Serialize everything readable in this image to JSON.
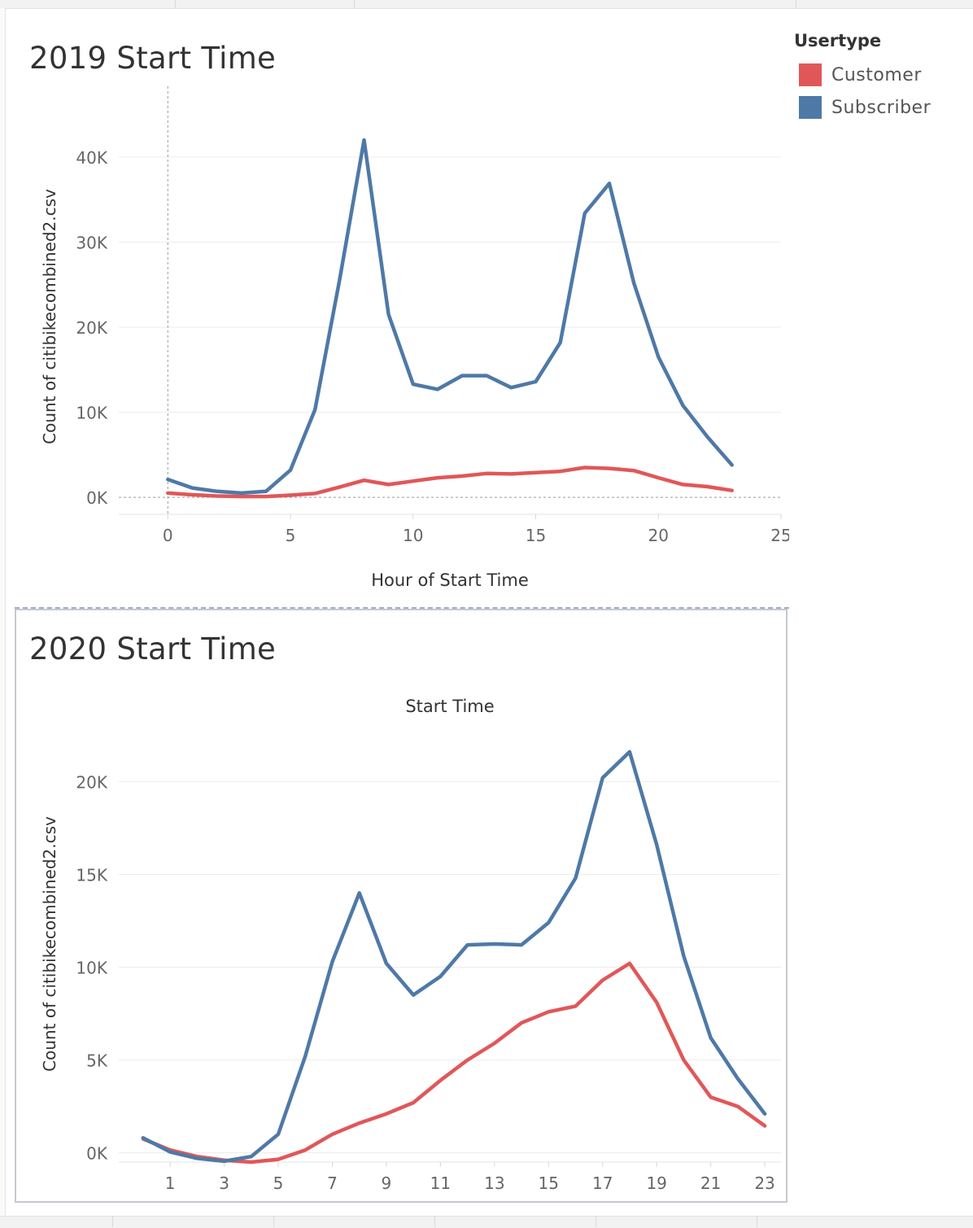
{
  "legend": {
    "title": "Usertype",
    "items": [
      {
        "label": "Customer",
        "color": "#e15759"
      },
      {
        "label": "Subscriber",
        "color": "#4e79a7"
      }
    ]
  },
  "chart_data": [
    {
      "type": "line",
      "title": "2019 Start Time",
      "xlabel": "Hour of Start Time",
      "ylabel": "Count of citibikecombined2.csv",
      "xlim": [
        -2,
        25
      ],
      "ylim": [
        -2000,
        44500
      ],
      "x_ticks": [
        0,
        5,
        10,
        15,
        20,
        25
      ],
      "y_ticks": [
        0,
        10000,
        20000,
        30000,
        40000
      ],
      "y_tick_labels": [
        "0K",
        "10K",
        "20K",
        "30K",
        "40K"
      ],
      "grid": true,
      "x": [
        0,
        1,
        2,
        3,
        4,
        5,
        6,
        7,
        8,
        9,
        10,
        11,
        12,
        13,
        14,
        15,
        16,
        17,
        18,
        19,
        20,
        21,
        22,
        23
      ],
      "series": [
        {
          "name": "Customer",
          "color": "#e15759",
          "values": [
            500,
            300,
            150,
            100,
            100,
            250,
            450,
            1200,
            2000,
            1500,
            1900,
            2300,
            2500,
            2800,
            2750,
            2900,
            3050,
            3500,
            3400,
            3150,
            2300,
            1500,
            1250,
            800
          ]
        },
        {
          "name": "Subscriber",
          "color": "#4e79a7",
          "values": [
            2100,
            1100,
            700,
            500,
            700,
            3200,
            10300,
            25500,
            42000,
            21500,
            13300,
            12700,
            14300,
            14300,
            12900,
            13600,
            18200,
            33400,
            36900,
            25200,
            16500,
            10800,
            7100,
            3800
          ]
        }
      ]
    },
    {
      "type": "line",
      "title": "2020 Start Time",
      "subtitle": "Start Time",
      "xlabel": "",
      "ylabel": "Count of citibikecombined2.csv",
      "xlim": [
        -0.9,
        23.6
      ],
      "ylim": [
        -500,
        23000
      ],
      "x_ticks": [
        1,
        3,
        5,
        7,
        9,
        11,
        13,
        15,
        17,
        19,
        21,
        23
      ],
      "y_ticks": [
        0,
        5000,
        10000,
        15000,
        20000
      ],
      "y_tick_labels": [
        "0K",
        "5K",
        "10K",
        "15K",
        "20K"
      ],
      "grid": true,
      "x": [
        0,
        1,
        2,
        3,
        4,
        5,
        6,
        7,
        8,
        9,
        10,
        11,
        12,
        13,
        14,
        15,
        16,
        17,
        18,
        19,
        20,
        21,
        22,
        23
      ],
      "series": [
        {
          "name": "Customer",
          "color": "#e15759",
          "values": [
            750,
            150,
            -200,
            -400,
            -500,
            -350,
            150,
            1000,
            1600,
            2100,
            2700,
            3900,
            5000,
            5900,
            7000,
            7600,
            7900,
            9300,
            10200,
            8100,
            5000,
            3000,
            2500,
            1450
          ]
        },
        {
          "name": "Subscriber",
          "color": "#4e79a7",
          "values": [
            800,
            50,
            -300,
            -450,
            -200,
            1000,
            5200,
            10300,
            14000,
            10200,
            8500,
            9500,
            11200,
            11250,
            11200,
            12400,
            14800,
            20200,
            21600,
            16600,
            10600,
            6200,
            4000,
            2100
          ]
        }
      ]
    }
  ]
}
